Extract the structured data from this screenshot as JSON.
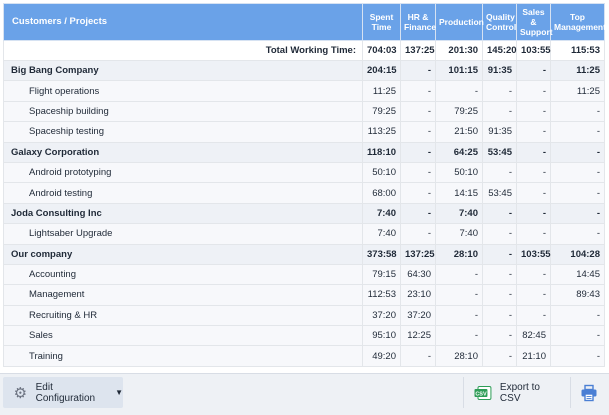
{
  "table": {
    "headers": {
      "name": "Customers / Projects",
      "spent": [
        "Spent",
        "Time"
      ],
      "hr": [
        "HR &",
        "Finance"
      ],
      "production": [
        "Production"
      ],
      "quality": [
        "Quality",
        "Control"
      ],
      "sales": [
        "Sales &",
        "Support"
      ],
      "top": [
        "Top",
        "Management"
      ]
    },
    "total": {
      "label": "Total Working Time:",
      "values": [
        "704:03",
        "137:25",
        "201:30",
        "145:20",
        "103:55",
        "115:53"
      ]
    },
    "rows": [
      {
        "level": "group",
        "name": "Big Bang Company",
        "values": [
          "204:15",
          "-",
          "101:15",
          "91:35",
          "-",
          "11:25"
        ]
      },
      {
        "level": "child",
        "name": "Flight operations",
        "values": [
          "11:25",
          "-",
          "-",
          "-",
          "-",
          "11:25"
        ]
      },
      {
        "level": "child",
        "name": "Spaceship building",
        "values": [
          "79:25",
          "-",
          "79:25",
          "-",
          "-",
          "-"
        ]
      },
      {
        "level": "child",
        "name": "Spaceship testing",
        "values": [
          "113:25",
          "-",
          "21:50",
          "91:35",
          "-",
          "-"
        ]
      },
      {
        "level": "group",
        "name": "Galaxy Corporation",
        "values": [
          "118:10",
          "-",
          "64:25",
          "53:45",
          "-",
          "-"
        ]
      },
      {
        "level": "child",
        "name": "Android prototyping",
        "values": [
          "50:10",
          "-",
          "50:10",
          "-",
          "-",
          "-"
        ]
      },
      {
        "level": "child",
        "name": "Android testing",
        "values": [
          "68:00",
          "-",
          "14:15",
          "53:45",
          "-",
          "-"
        ]
      },
      {
        "level": "group",
        "name": "Joda Consulting Inc",
        "values": [
          "7:40",
          "-",
          "7:40",
          "-",
          "-",
          "-"
        ]
      },
      {
        "level": "child",
        "name": "Lightsaber Upgrade",
        "values": [
          "7:40",
          "-",
          "7:40",
          "-",
          "-",
          "-"
        ]
      },
      {
        "level": "group",
        "name": "Our company",
        "values": [
          "373:58",
          "137:25",
          "28:10",
          "-",
          "103:55",
          "104:28"
        ]
      },
      {
        "level": "child",
        "name": "Accounting",
        "values": [
          "79:15",
          "64:30",
          "-",
          "-",
          "-",
          "14:45"
        ]
      },
      {
        "level": "child",
        "name": "Management",
        "values": [
          "112:53",
          "23:10",
          "-",
          "-",
          "-",
          "89:43"
        ]
      },
      {
        "level": "child",
        "name": "Recruiting & HR",
        "values": [
          "37:20",
          "37:20",
          "-",
          "-",
          "-",
          "-"
        ]
      },
      {
        "level": "child",
        "name": "Sales",
        "values": [
          "95:10",
          "12:25",
          "-",
          "-",
          "82:45",
          "-"
        ]
      },
      {
        "level": "child",
        "name": "Training",
        "values": [
          "49:20",
          "-",
          "28:10",
          "-",
          "21:10",
          "-"
        ]
      }
    ]
  },
  "toolbar": {
    "config_label": "Edit Configuration",
    "export_label": "Export to CSV",
    "csv_icon_text": "CSV"
  },
  "icons": {
    "config": "gear-icon",
    "config_caret": "caret-down-icon",
    "export": "csv-file-icon",
    "print": "printer-icon"
  },
  "colors": {
    "header_bg": "#6aa2e8",
    "group_row_bg": "#eef1f6",
    "child_row_bg": "#f7f8fb",
    "toolbar_bg": "#eef1f5",
    "csv_icon": "#2e9d57",
    "print_icon": "#4a7fd4"
  }
}
